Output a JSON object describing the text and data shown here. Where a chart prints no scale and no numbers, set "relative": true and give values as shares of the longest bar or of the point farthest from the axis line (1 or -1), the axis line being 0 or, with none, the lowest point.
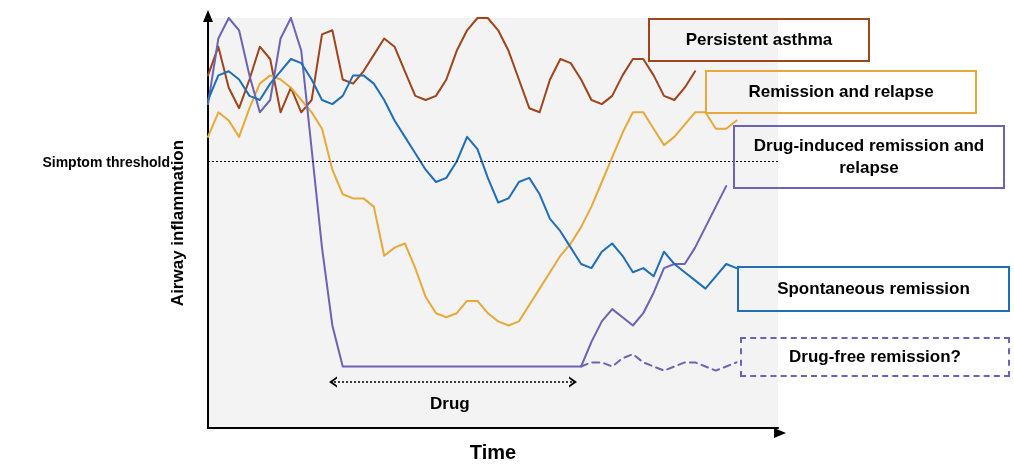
{
  "chart_data": {
    "type": "line",
    "relative": true,
    "xlabel": "Time",
    "ylabel": "Airway inflammation",
    "categories": [
      null,
      null,
      null,
      null,
      null,
      null,
      null,
      null,
      null,
      null,
      null,
      null,
      null,
      null,
      null,
      null,
      null,
      null,
      null,
      null,
      null,
      null,
      null,
      null,
      null,
      null,
      null,
      null,
      null,
      null,
      null,
      null,
      null,
      null,
      null,
      null,
      null,
      null,
      null,
      null,
      null,
      null,
      null,
      null,
      null,
      null,
      null,
      null,
      null,
      null,
      null,
      null,
      null,
      null,
      null,
      null
    ],
    "series": [
      {
        "name": "Persistent asthma",
        "color": "#a0441c",
        "values": [
          0.86,
          0.93,
          0.83,
          0.78,
          0.85,
          0.93,
          0.9,
          0.77,
          0.83,
          0.77,
          0.8,
          0.96,
          0.97,
          0.85,
          0.84,
          0.87,
          0.91,
          0.95,
          0.93,
          0.87,
          0.81,
          0.8,
          0.81,
          0.85,
          0.92,
          0.97,
          1,
          1,
          0.97,
          0.92,
          0.85,
          0.78,
          0.77,
          0.85,
          0.9,
          0.89,
          0.85,
          0.8,
          0.79,
          0.81,
          0.86,
          0.9,
          0.9,
          0.86,
          0.81,
          0.8,
          0.83,
          0.87,
          null,
          null,
          null,
          null,
          null,
          null,
          null,
          null
        ]
      },
      {
        "name": "Remission and relapse",
        "color": "#e8a93a",
        "values": [
          0.71,
          0.77,
          0.75,
          0.71,
          0.78,
          0.84,
          0.86,
          0.85,
          0.83,
          0.8,
          0.77,
          0.73,
          0.63,
          0.57,
          0.56,
          0.56,
          0.54,
          0.42,
          0.44,
          0.45,
          0.39,
          0.32,
          0.28,
          0.27,
          0.28,
          0.31,
          0.31,
          0.28,
          0.26,
          0.25,
          0.26,
          0.3,
          0.34,
          0.38,
          0.42,
          0.45,
          0.49,
          0.54,
          0.6,
          0.66,
          0.72,
          0.77,
          0.77,
          0.73,
          0.69,
          0.71,
          0.74,
          0.77,
          0.77,
          0.73,
          0.73,
          0.75,
          null,
          null,
          null,
          null
        ]
      },
      {
        "name": "Drug-induced remission and relapse",
        "color": "#6b63b5",
        "values": [
          0.79,
          0.95,
          1,
          0.97,
          0.86,
          0.77,
          0.8,
          0.95,
          1,
          0.92,
          0.68,
          0.44,
          0.25,
          0.15,
          0.15,
          0.15,
          0.15,
          0.15,
          0.15,
          0.15,
          0.15,
          0.15,
          0.15,
          0.15,
          0.15,
          0.15,
          0.15,
          0.15,
          0.15,
          0.15,
          0.15,
          0.15,
          0.15,
          0.15,
          0.15,
          0.15,
          0.15,
          0.21,
          0.26,
          0.29,
          0.27,
          0.25,
          0.28,
          0.33,
          0.39,
          0.4,
          0.4,
          0.44,
          0.49,
          0.54,
          0.59,
          null,
          null,
          null,
          null,
          null
        ]
      },
      {
        "name": "Spontaneous remission",
        "color": "#1f6fb8",
        "values": [
          0.8,
          0.86,
          0.87,
          0.85,
          0.81,
          0.8,
          0.84,
          0.87,
          0.9,
          0.89,
          0.85,
          0.8,
          0.79,
          0.81,
          0.86,
          0.86,
          0.84,
          0.8,
          0.75,
          0.71,
          0.67,
          0.63,
          0.6,
          0.61,
          0.65,
          0.71,
          0.68,
          0.61,
          0.55,
          0.56,
          0.6,
          0.61,
          0.57,
          0.51,
          0.48,
          0.44,
          0.4,
          0.39,
          0.43,
          0.45,
          0.42,
          0.38,
          0.39,
          0.37,
          0.43,
          0.4,
          0.38,
          0.36,
          0.34,
          0.37,
          0.4,
          0.39,
          null,
          null,
          null,
          null
        ]
      },
      {
        "name": "Drug-free remission?",
        "color": "#6b63b5",
        "line_style": "dashed",
        "values": [
          null,
          null,
          null,
          null,
          null,
          null,
          null,
          null,
          null,
          null,
          null,
          null,
          null,
          null,
          null,
          null,
          null,
          null,
          null,
          null,
          null,
          null,
          null,
          null,
          null,
          null,
          null,
          null,
          null,
          null,
          null,
          null,
          null,
          null,
          null,
          null,
          0.15,
          0.16,
          0.16,
          0.15,
          0.17,
          0.18,
          0.16,
          0.15,
          0.14,
          0.15,
          0.16,
          0.16,
          0.15,
          0.14,
          0.15,
          0.16,
          null,
          null,
          null,
          null
        ]
      }
    ],
    "ref_lines": [
      {
        "axis": "y",
        "value": 0.65,
        "label": "Simptom threshold",
        "color": "#000000",
        "line_style": "dotted"
      }
    ],
    "annotations": [
      "Drug"
    ]
  }
}
